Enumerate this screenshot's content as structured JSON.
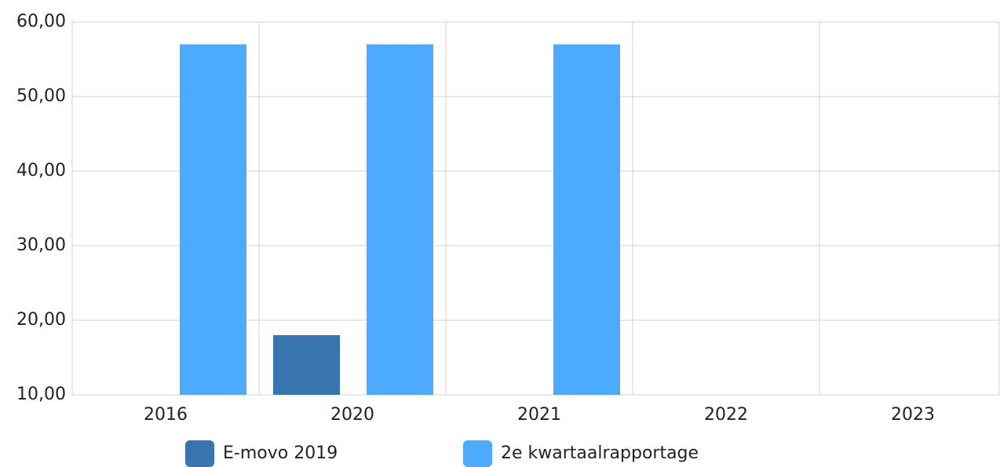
{
  "chart_data": {
    "type": "bar",
    "categories": [
      "2016",
      "2020",
      "2021",
      "2022",
      "2023"
    ],
    "series": [
      {
        "name": "E-movo 2019",
        "color": "#3774b0",
        "values": [
          null,
          18,
          null,
          null,
          null
        ]
      },
      {
        "name": "2e kwartaalrapportage",
        "color": "#4dabff",
        "values": [
          57,
          57,
          57,
          null,
          null
        ]
      }
    ],
    "ylim": [
      10,
      60
    ],
    "yticks": [
      {
        "value": 10,
        "label": "10,00"
      },
      {
        "value": 20,
        "label": "20,00"
      },
      {
        "value": 30,
        "label": "30,00"
      },
      {
        "value": 40,
        "label": "40,00"
      },
      {
        "value": 50,
        "label": "50,00"
      },
      {
        "value": 60,
        "label": "60,00"
      }
    ],
    "grid": true
  }
}
